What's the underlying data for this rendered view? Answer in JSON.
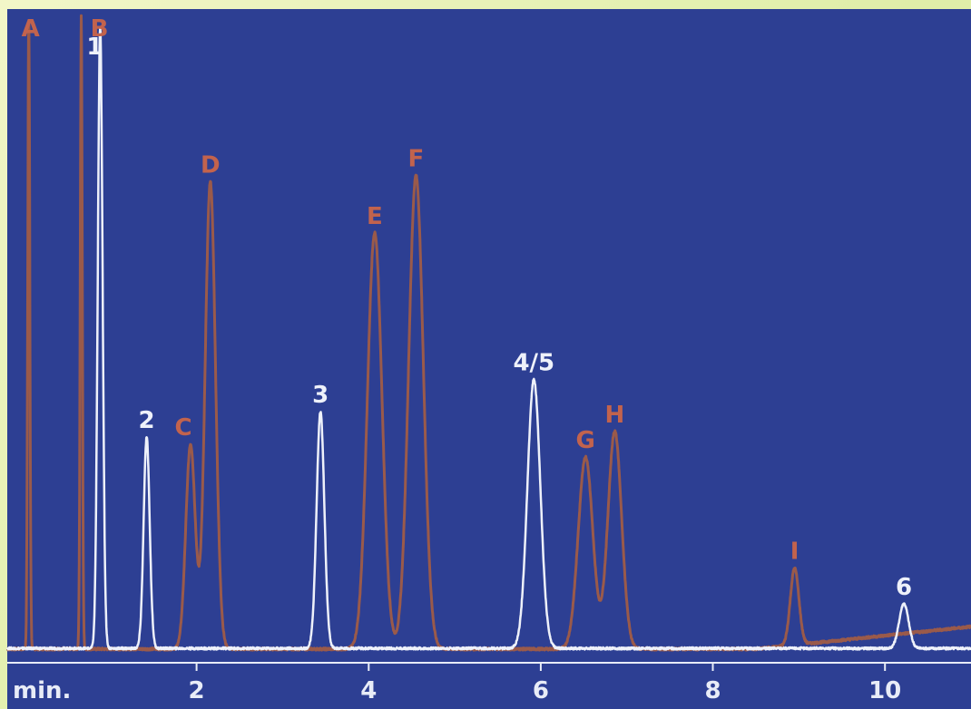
{
  "chart_data": {
    "type": "line",
    "title": "",
    "xlabel": "min.",
    "ylabel": "",
    "xlim": [
      -0.2,
      11.0
    ],
    "ylim": [
      0,
      100
    ],
    "grid": false,
    "legend": "none",
    "x_ticks": [
      {
        "value": 2,
        "label": "2"
      },
      {
        "value": 4,
        "label": "4"
      },
      {
        "value": 6,
        "label": "6"
      },
      {
        "value": 8,
        "label": "8"
      },
      {
        "value": 10,
        "label": "10"
      }
    ],
    "series": [
      {
        "color": "#9a5a4a",
        "baseline": 0.3,
        "drift": [
          {
            "x": 8.5,
            "y": 0.3
          },
          {
            "x": 11.0,
            "y": 3.8
          }
        ],
        "peaks": [
          {
            "label": "A",
            "x": 0.05,
            "height": 99,
            "width": 0.012
          },
          {
            "label": "B",
            "x": 0.66,
            "height": 99,
            "width": 0.012
          },
          {
            "label": "C",
            "x": 1.93,
            "height": 32,
            "width": 0.055
          },
          {
            "label": "D",
            "x": 2.16,
            "height": 73,
            "width": 0.06
          },
          {
            "label": "E",
            "x": 4.07,
            "height": 65,
            "width": 0.085
          },
          {
            "label": "F",
            "x": 4.55,
            "height": 74,
            "width": 0.085
          },
          {
            "label": "G",
            "x": 6.52,
            "height": 30,
            "width": 0.085
          },
          {
            "label": "H",
            "x": 6.86,
            "height": 34,
            "width": 0.08
          },
          {
            "label": "I",
            "x": 8.95,
            "height": 12,
            "width": 0.05
          }
        ]
      },
      {
        "color": "#eef1fa",
        "baseline": 0.4,
        "peaks": [
          {
            "label": "1",
            "x": 0.88,
            "height": 97,
            "width": 0.028
          },
          {
            "label": "2",
            "x": 1.42,
            "height": 33,
            "width": 0.035
          },
          {
            "label": "3",
            "x": 3.44,
            "height": 37,
            "width": 0.045
          },
          {
            "label": "4/5",
            "x": 5.92,
            "height": 42,
            "width": 0.075
          },
          {
            "label": "6",
            "x": 10.22,
            "height": 7,
            "width": 0.055
          }
        ]
      }
    ]
  }
}
